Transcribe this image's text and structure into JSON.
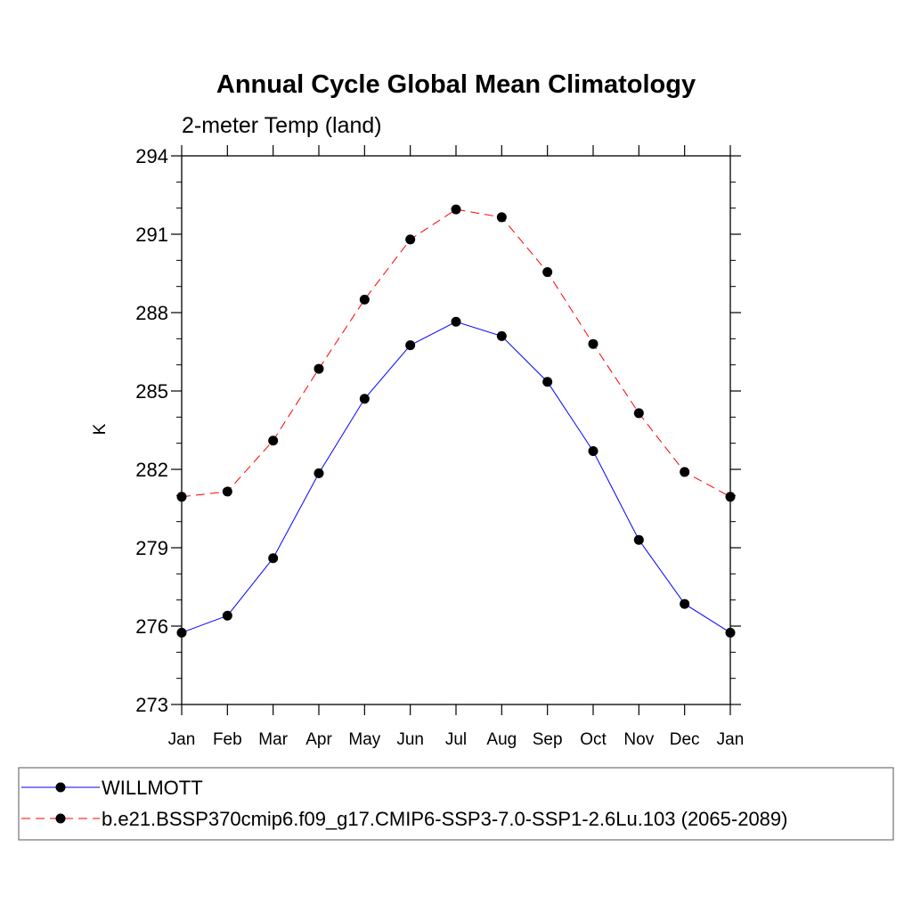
{
  "chart_data": {
    "type": "line",
    "title": "Annual Cycle Global Mean Climatology",
    "subtitle": "2-meter Temp (land)",
    "xlabel": "",
    "ylabel": "K",
    "categories": [
      "Jan",
      "Feb",
      "Mar",
      "Apr",
      "May",
      "Jun",
      "Jul",
      "Aug",
      "Sep",
      "Oct",
      "Nov",
      "Dec",
      "Jan"
    ],
    "ylim": [
      273,
      294
    ],
    "yticks": [
      273,
      276,
      279,
      282,
      285,
      288,
      291,
      294
    ],
    "grid": false,
    "legend_position": "bottom",
    "series": [
      {
        "name": "WILLMOTT",
        "color": "#0000ff",
        "line_style": "solid",
        "marker": "filled-circle",
        "values": [
          275.75,
          276.4,
          278.6,
          281.85,
          284.7,
          286.75,
          287.65,
          287.1,
          285.35,
          282.7,
          279.3,
          276.85,
          275.75
        ]
      },
      {
        "name": "b.e21.BSSP370cmip6.f09_g17.CMIP6-SSP3-7.0-SSP1-2.6Lu.103 (2065-2089)",
        "color": "#ff0000",
        "line_style": "dashed",
        "marker": "filled-circle",
        "values": [
          280.95,
          281.15,
          283.1,
          285.85,
          288.5,
          290.8,
          291.95,
          291.65,
          289.55,
          286.8,
          284.15,
          281.9,
          280.95
        ]
      }
    ]
  }
}
